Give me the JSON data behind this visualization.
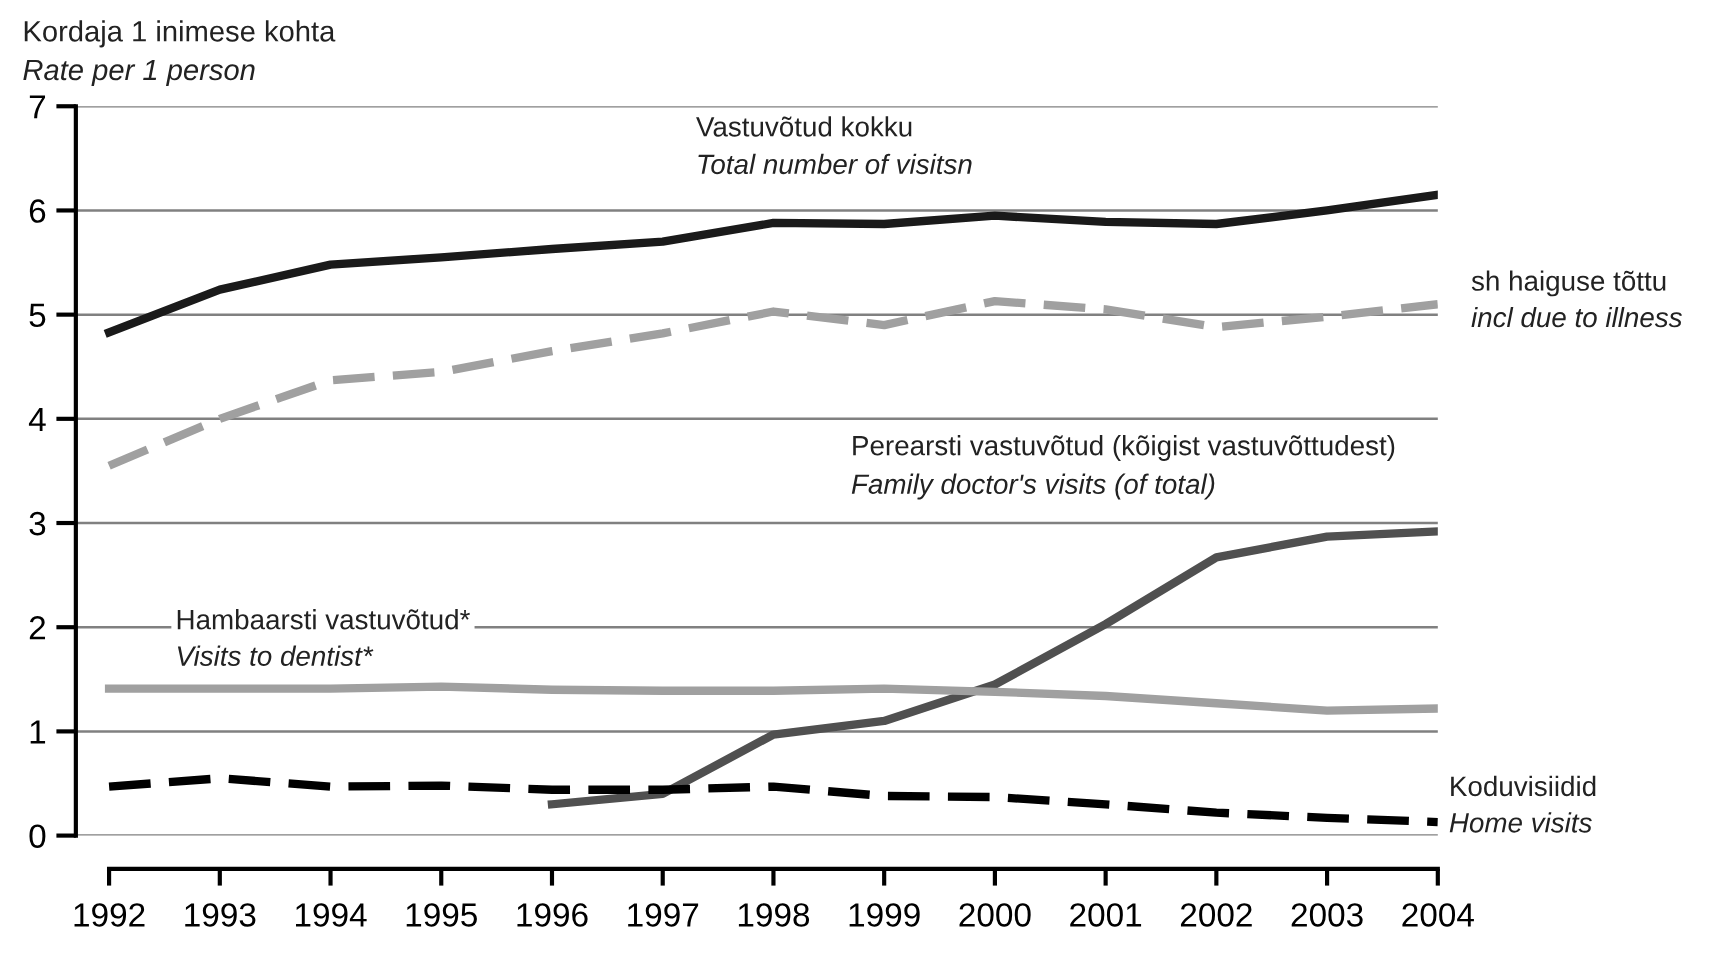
{
  "chart_data": {
    "type": "line",
    "title": "Kordaja 1 inimese kohta",
    "subtitle": "Rate per 1 person",
    "x": [
      1992,
      1993,
      1994,
      1995,
      1996,
      1997,
      1998,
      1999,
      2000,
      2001,
      2002,
      2003,
      2004
    ],
    "series": [
      {
        "name": "Vastuvõtud kokku\nTotal number of visitsn",
        "color": "#1a1a1a",
        "line_style": "solid",
        "values": [
          4.83,
          5.24,
          5.48,
          5.55,
          5.63,
          5.7,
          5.88,
          5.87,
          5.95,
          5.89,
          5.87,
          6.0,
          6.15
        ]
      },
      {
        "name": "sh haiguse tõttu\nincl due to illness",
        "color": "#a0a0a0",
        "line_style": "dashed",
        "values": [
          3.55,
          4.0,
          4.37,
          4.45,
          4.65,
          4.82,
          5.03,
          4.9,
          5.13,
          5.05,
          4.88,
          4.98,
          5.1
        ]
      },
      {
        "name": "Perearsti vastuvõtud (kõigist vastuvõttudest)\nFamily doctor's visits (of total)",
        "color": "#505050",
        "line_style": "solid",
        "values": [
          null,
          null,
          null,
          null,
          0.3,
          0.4,
          0.97,
          1.1,
          1.45,
          2.03,
          2.67,
          2.87,
          2.92
        ]
      },
      {
        "name": "Hambaarsti vastuvõtud*\nVisits to dentist*",
        "color": "#a0a0a0",
        "line_style": "solid",
        "values": [
          1.41,
          1.41,
          1.41,
          1.43,
          1.4,
          1.39,
          1.39,
          1.41,
          1.38,
          1.34,
          1.27,
          1.2,
          1.22
        ]
      },
      {
        "name": "Koduvisiidid\nHome visits",
        "color": "#000000",
        "line_style": "dashed",
        "values": [
          0.47,
          0.55,
          0.47,
          0.48,
          0.44,
          0.44,
          0.47,
          0.38,
          0.37,
          0.3,
          0.22,
          0.17,
          0.13
        ]
      }
    ],
    "xlim": [
      1991.7,
      2004
    ],
    "xticks": [
      1992,
      1993,
      1994,
      1995,
      1996,
      1997,
      1998,
      1999,
      2000,
      2001,
      2002,
      2003,
      2004
    ],
    "ylim": [
      0,
      7
    ],
    "yticks": [
      0,
      1,
      2,
      3,
      4,
      5,
      6,
      7
    ],
    "grid": "y",
    "legend": false,
    "marker": "none"
  }
}
